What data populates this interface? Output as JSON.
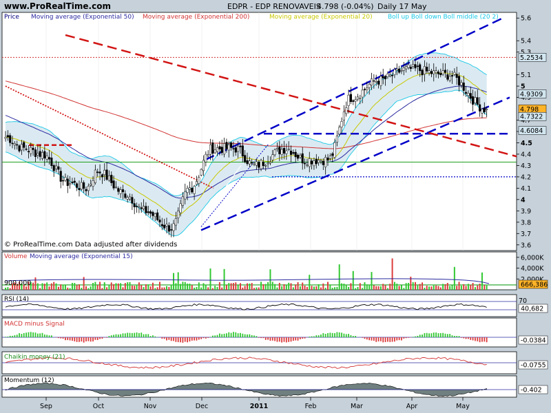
{
  "header": {
    "site": "www.ProRealTime.com",
    "title": "EDPR - EDP RENOVAVEIS",
    "quote": "4.798 (-0.04%)",
    "period": "Daily  17 May"
  },
  "price_panel": {
    "legend": [
      {
        "text": "Price",
        "color": "#000080"
      },
      {
        "text": "Moving average (Exponential 50)",
        "color": "#2a2aa0"
      },
      {
        "text": "Moving average (Exponential 200)",
        "color": "#d23232"
      },
      {
        "text": "Moving average (Exponential 20)",
        "color": "#c8c800"
      },
      {
        "text": "Boll up Boll down Boll middle (20 2)",
        "color": "#19c8e6"
      }
    ],
    "footer": "© ProRealTime.com  Data adjusted after dividends",
    "ticks": [
      "5.6",
      "5.4",
      "5.3",
      "5.1",
      "5",
      "4.9",
      "4.7",
      "4.6",
      "4.5",
      "4.4",
      "4.3",
      "4.2",
      "4.1",
      "4",
      "3.9",
      "3.8",
      "3.7",
      "3.6"
    ],
    "ylim": [
      3.55,
      5.65
    ],
    "tags": [
      {
        "text": "5.2534",
        "value": 5.2534,
        "fill": "#d2e6f0",
        "color": "#c83c3c"
      },
      {
        "text": "4.9309",
        "value": 4.9309,
        "fill": "#d2e6f0",
        "color": "#a0a000"
      },
      {
        "text": "4.798",
        "value": 4.798,
        "fill": "#ffb428",
        "color": "#000000"
      },
      {
        "text": "4.7322",
        "value": 4.7322,
        "fill": "#d2e6f0",
        "color": "#c83c3c"
      },
      {
        "text": "4.6084",
        "value": 4.6084,
        "fill": "#d2e6f0",
        "color": "#14a0c8"
      }
    ]
  },
  "volume_panel": {
    "legend": [
      {
        "text": "Volume",
        "color": "#d23232"
      },
      {
        "text": "Moving average (Exponential 15)",
        "color": "#2a2aa0"
      }
    ],
    "level_label": "900,000",
    "ticks": [
      "6,000K",
      "4,000K",
      "2,000K"
    ],
    "last": "666,386"
  },
  "rsi_panel": {
    "legend": "RSI (14)",
    "ticks": [
      "70"
    ],
    "last": "40,682"
  },
  "macd_panel": {
    "legend": "MACD minus Signal",
    "last": "-0.0384"
  },
  "chaikin_panel": {
    "legend": "Chaikin money (21)",
    "last": "-0.0755"
  },
  "momentum_panel": {
    "legend": "Momentum (12)",
    "last": "-0.402"
  },
  "x_axis": {
    "months": [
      "Sep",
      "Oct",
      "Nov",
      "Dec",
      "2011",
      "Feb",
      "Mar",
      "Apr",
      "May"
    ]
  },
  "chart_data": {
    "type": "candlestick",
    "title": "EDPR - EDP RENOVAVEIS",
    "x_labels": [
      "Sep",
      "Oct",
      "Nov",
      "Dec",
      "2011",
      "Feb",
      "Mar",
      "Apr",
      "May"
    ],
    "ylim": [
      3.55,
      5.65
    ],
    "last_price": 4.798,
    "change": "-0.04%",
    "indicators": {
      "ema50": 4.9309,
      "ema200": 4.7322,
      "boll_up": 5.2534,
      "boll_down": 4.6084,
      "volume_last": 666386,
      "rsi14": 40.682,
      "macd_minus_signal": -0.0384,
      "chaikin_money_21": -0.0755,
      "momentum_12": -0.402
    },
    "close_path": [
      [
        "Sep",
        4.55
      ],
      [
        "Sep",
        4.45
      ],
      [
        "Sep",
        4.4
      ],
      [
        "Oct",
        4.15
      ],
      [
        "Oct",
        4.1
      ],
      [
        "Nov",
        4.25
      ],
      [
        "Nov",
        4.05
      ],
      [
        "Nov",
        3.9
      ],
      [
        "Dec",
        3.75
      ],
      [
        "Dec",
        4.1
      ],
      [
        "Dec",
        4.45
      ],
      [
        "2011",
        4.45
      ],
      [
        "2011",
        4.3
      ],
      [
        "Feb",
        4.45
      ],
      [
        "Feb",
        4.35
      ],
      [
        "Mar",
        4.35
      ],
      [
        "Mar",
        4.9
      ],
      [
        "Apr",
        5.05
      ],
      [
        "Apr",
        5.15
      ],
      [
        "May",
        5.1
      ],
      [
        "May",
        4.798
      ]
    ]
  }
}
